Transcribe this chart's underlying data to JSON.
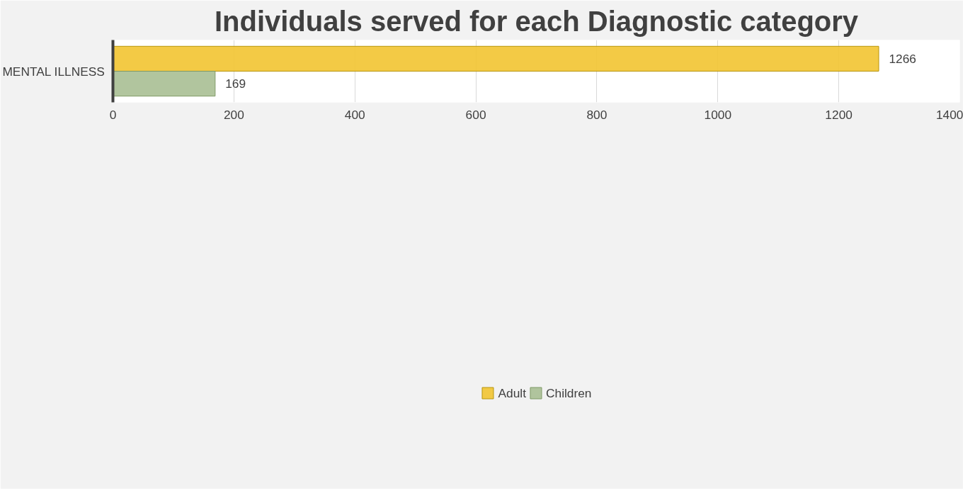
{
  "chart_data": {
    "type": "bar",
    "orientation": "horizontal",
    "title": "Individuals served for each Diagnostic category",
    "categories": [
      "MENTAL ILLNESS"
    ],
    "series": [
      {
        "name": "Adult",
        "color": "#f2c431",
        "values": [
          1266
        ]
      },
      {
        "name": "Children",
        "color": "#a9bf94",
        "values": [
          169
        ]
      }
    ],
    "xlim": [
      0,
      1400
    ],
    "xticks": [
      0,
      200,
      400,
      600,
      800,
      1000,
      1200,
      1400
    ],
    "grid": "x",
    "legend": "bottom",
    "data_labels": true
  }
}
